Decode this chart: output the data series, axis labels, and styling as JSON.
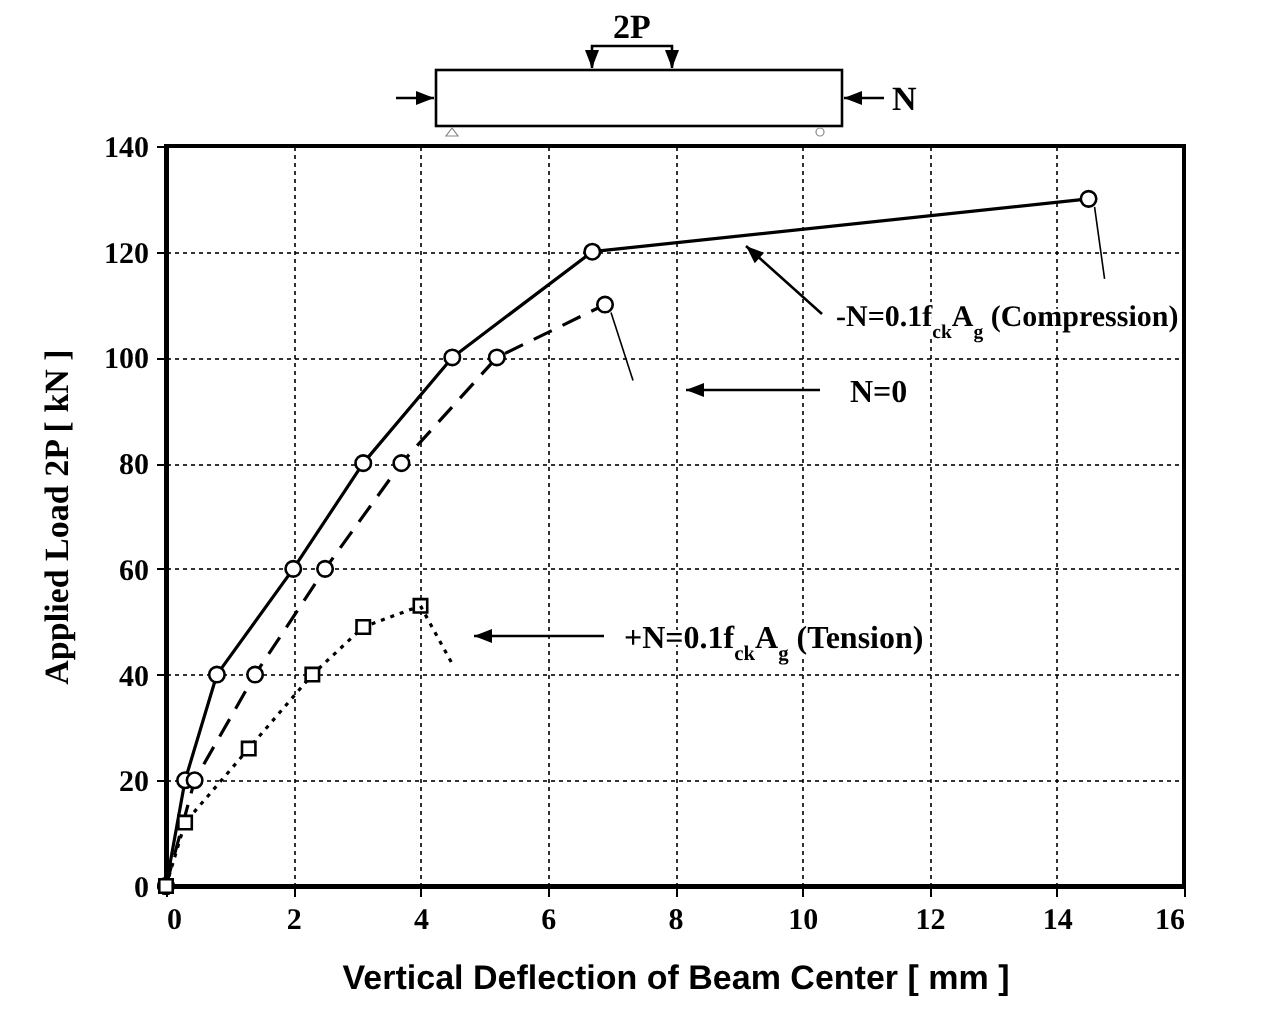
{
  "chart_data": {
    "type": "line",
    "xlabel": "Vertical Deflection of Beam Center  [ mm ]",
    "ylabel": "Applied  Load  2P   [ kN ]",
    "xlim": [
      0,
      16
    ],
    "xticks": [
      0,
      2,
      4,
      6,
      8,
      10,
      12,
      14,
      16
    ],
    "ylim": [
      0,
      140
    ],
    "yticks": [
      0,
      20,
      40,
      60,
      80,
      100,
      120,
      140
    ],
    "grid": true,
    "series": [
      {
        "color": "#000000",
        "line_style": "solid",
        "marker": "circle",
        "x": [
          0,
          0.3,
          0.8,
          2.0,
          3.1,
          4.5,
          6.7,
          14.5
        ],
        "values": [
          0,
          20,
          40,
          60,
          80,
          100,
          120,
          130
        ]
      },
      {
        "color": "#000000",
        "line_style": "dashed",
        "marker": "circle",
        "x": [
          0,
          0.45,
          1.4,
          2.5,
          3.7,
          5.2,
          6.9
        ],
        "values": [
          0,
          20,
          40,
          60,
          80,
          100,
          110
        ]
      },
      {
        "color": "#000000",
        "line_style": "dotted",
        "marker": "square",
        "x": [
          0,
          0.3,
          1.3,
          2.3,
          3.1,
          4.0
        ],
        "values": [
          0,
          12,
          26,
          40,
          49,
          53
        ]
      },
      {
        "color": "#000000",
        "line_style": "dotted",
        "marker": "none",
        "x": [
          4.0,
          4.5
        ],
        "values": [
          53,
          42
        ]
      }
    ],
    "annotations": [
      "-N=0.1f$_{ck}$A$_{g}$ (Compression)",
      "N=0",
      "+N=0.1f$_{ck}$A$_{g}$ (Tension)",
      "2P",
      "N"
    ]
  }
}
